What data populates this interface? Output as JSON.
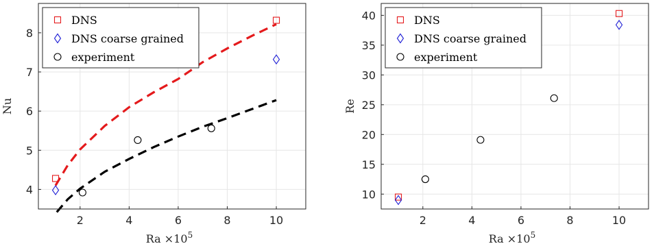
{
  "chart_data": [
    {
      "type": "scatter",
      "xlabel": "Ra ×10",
      "xlabel_exponent": "5",
      "ylabel": "Nu",
      "xlim": [
        0.3,
        11.2
      ],
      "ylim": [
        3.5,
        8.75
      ],
      "xticks": [
        2,
        4,
        6,
        8,
        10
      ],
      "yticks": [
        4,
        5,
        6,
        7,
        8
      ],
      "grid": true,
      "legend_position": "top-left",
      "series": [
        {
          "name": "DNS",
          "marker": "square",
          "color": "#e41a1c",
          "points": [
            [
              1,
              4.28
            ],
            [
              10,
              8.32
            ]
          ]
        },
        {
          "name": "DNS coarse grained",
          "marker": "diamond",
          "color": "#1f1fd6",
          "points": [
            [
              1,
              3.98
            ],
            [
              10,
              7.32
            ]
          ]
        },
        {
          "name": "experiment",
          "marker": "circle",
          "color": "#000000",
          "points": [
            [
              2.1,
              3.92
            ],
            [
              4.35,
              5.26
            ],
            [
              7.35,
              5.56
            ]
          ]
        }
      ],
      "fits": [
        {
          "color": "#e41a1c",
          "style": "dashed",
          "points": [
            [
              1.0,
              4.1
            ],
            [
              1.5,
              4.62
            ],
            [
              2,
              5.02
            ],
            [
              3,
              5.62
            ],
            [
              4,
              6.1
            ],
            [
              5,
              6.48
            ],
            [
              6,
              6.82
            ],
            [
              7,
              7.25
            ],
            [
              8,
              7.6
            ],
            [
              9,
              7.92
            ],
            [
              10,
              8.22
            ]
          ]
        },
        {
          "color": "#000000",
          "style": "dashed",
          "points": [
            [
              1.05,
              3.42
            ],
            [
              1.5,
              3.75
            ],
            [
              2,
              4.02
            ],
            [
              3,
              4.45
            ],
            [
              4,
              4.78
            ],
            [
              5,
              5.08
            ],
            [
              6,
              5.35
            ],
            [
              7,
              5.6
            ],
            [
              8,
              5.82
            ],
            [
              9,
              6.05
            ],
            [
              10,
              6.28
            ]
          ]
        }
      ]
    },
    {
      "type": "scatter",
      "xlabel": "Ra ×10",
      "xlabel_exponent": "5",
      "ylabel": "Re",
      "xlim": [
        0.3,
        11.2
      ],
      "ylim": [
        7.5,
        42
      ],
      "xticks": [
        2,
        4,
        6,
        8,
        10
      ],
      "yticks": [
        10,
        15,
        20,
        25,
        30,
        35,
        40
      ],
      "grid": true,
      "legend_position": "top-left",
      "series": [
        {
          "name": "DNS",
          "marker": "square",
          "color": "#e41a1c",
          "points": [
            [
              1,
              9.5
            ],
            [
              10,
              40.3
            ]
          ]
        },
        {
          "name": "DNS coarse grained",
          "marker": "diamond",
          "color": "#1f1fd6",
          "points": [
            [
              1,
              9.0
            ],
            [
              10,
              38.4
            ]
          ]
        },
        {
          "name": "experiment",
          "marker": "circle",
          "color": "#000000",
          "points": [
            [
              2.1,
              12.5
            ],
            [
              4.35,
              19.1
            ],
            [
              7.35,
              26.1
            ]
          ]
        }
      ],
      "fits": []
    }
  ]
}
